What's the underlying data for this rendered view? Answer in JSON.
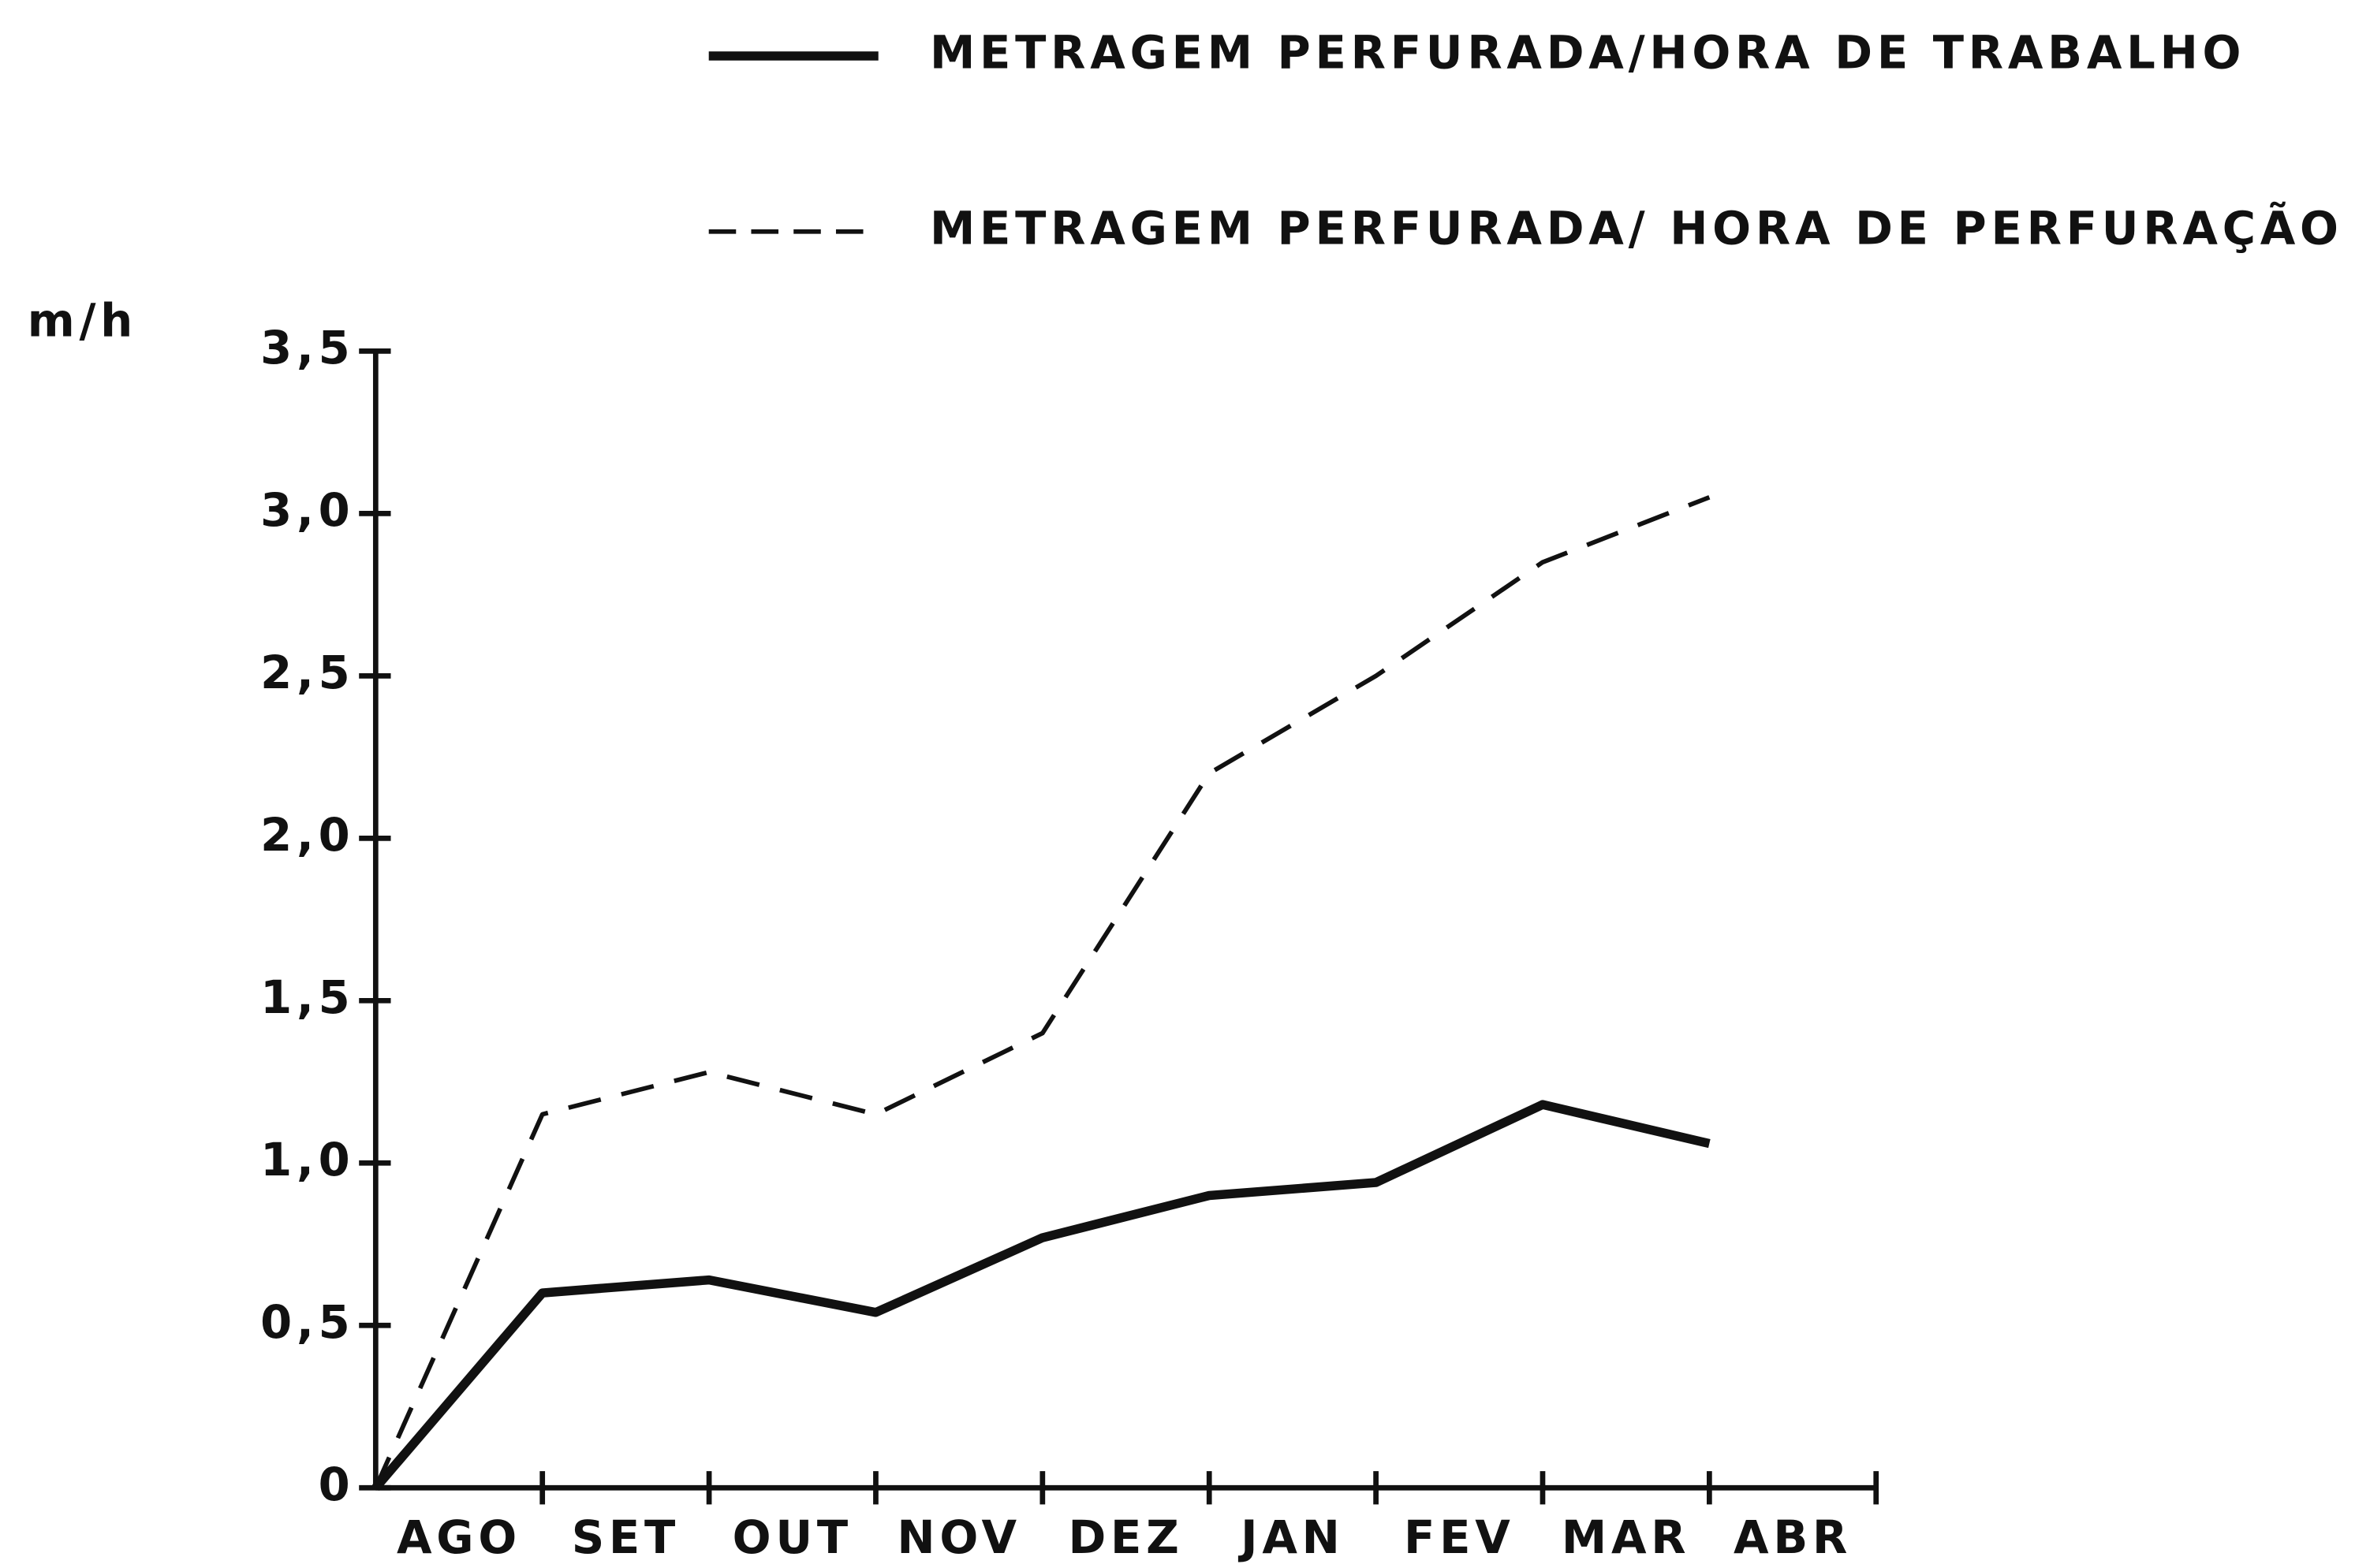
{
  "chart_data": {
    "type": "line",
    "y_label": "m/h",
    "categories": [
      "AGO",
      "SET",
      "OUT",
      "NOV",
      "DEZ",
      "JAN",
      "FEV",
      "MAR",
      "ABR"
    ],
    "series": [
      {
        "name": "METRAGEM PERFURADA/HORA DE TRABALHO",
        "color": "#111111",
        "style": "solid",
        "values": [
          0,
          0.6,
          0.64,
          0.54,
          0.77,
          0.9,
          0.94,
          1.18,
          1.06
        ]
      },
      {
        "name": "METRAGEM PERFURADA/ HORA DE PERFURAÇÃO",
        "color": "#111111",
        "style": "dashed",
        "values": [
          0,
          1.15,
          1.28,
          1.15,
          1.4,
          2.2,
          2.5,
          2.85,
          3.05
        ]
      }
    ],
    "ylim": [
      0,
      3.5
    ],
    "yticks": [
      0,
      {
        "value": 0.5,
        "label": "0,5"
      },
      {
        "value": 1,
        "label": "1,0"
      },
      {
        "value": 1.5,
        "label": "1,5"
      },
      {
        "value": 2,
        "label": "2,0"
      },
      {
        "value": 2.5,
        "label": "2,5"
      },
      {
        "value": 3,
        "label": "3,0"
      },
      {
        "value": 3.5,
        "label": "3,5"
      }
    ],
    "grid": false
  }
}
